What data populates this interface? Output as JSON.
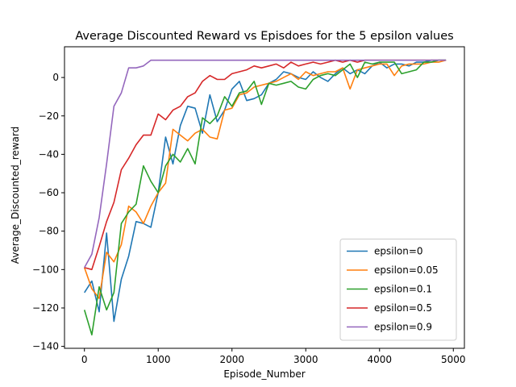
{
  "chart_data": {
    "type": "line",
    "title": "Average Discounted Reward vs Episdoes for the 5 epsilon values",
    "xlabel": "Episode_Number",
    "ylabel": "Average_Discounted_reward",
    "xlim": [
      -270,
      5150
    ],
    "ylim": [
      -141,
      16
    ],
    "xticks": [
      0,
      1000,
      2000,
      3000,
      4000,
      5000
    ],
    "yticks": [
      -140,
      -120,
      -100,
      -80,
      -60,
      -40,
      -20,
      0
    ],
    "legend_position": "lower right",
    "grid": false,
    "x": [
      0,
      100,
      200,
      300,
      400,
      500,
      600,
      700,
      800,
      900,
      1000,
      1100,
      1200,
      1300,
      1400,
      1500,
      1600,
      1700,
      1800,
      1900,
      2000,
      2100,
      2200,
      2300,
      2400,
      2500,
      2600,
      2700,
      2800,
      2900,
      3000,
      3100,
      3200,
      3300,
      3400,
      3500,
      3600,
      3700,
      3800,
      3900,
      4000,
      4100,
      4200,
      4300,
      4400,
      4500,
      4600,
      4700,
      4800,
      4900
    ],
    "series": [
      {
        "name": "epsilon=0",
        "color": "#1f77b4",
        "values": [
          -112,
          -106,
          -122,
          -81,
          -127,
          -105,
          -93,
          -75,
          -76,
          -78,
          -60,
          -31,
          -45,
          -25,
          -15,
          -16,
          -29,
          -9,
          -23,
          -17,
          -6,
          -2,
          -12,
          -11,
          -9,
          -3,
          -1,
          3,
          2,
          0,
          -1,
          3,
          0,
          -2,
          2,
          5,
          2,
          4,
          2,
          6,
          8,
          5,
          7,
          7,
          6,
          8,
          8,
          9,
          9,
          9
        ]
      },
      {
        "name": "epsilon=0.05",
        "color": "#ff7f0e",
        "values": [
          -99,
          -110,
          -115,
          -91,
          -96,
          -87,
          -67,
          -70,
          -76,
          -67,
          -60,
          -55,
          -27,
          -30,
          -33,
          -29,
          -27,
          -31,
          -32,
          -17,
          -16,
          -9,
          -8,
          -5,
          -4,
          -3,
          -2,
          0,
          2,
          -1,
          3,
          1,
          2,
          3,
          3,
          5,
          -6,
          4,
          5,
          6,
          7,
          7,
          1,
          6,
          7,
          7,
          7,
          8,
          8,
          9
        ]
      },
      {
        "name": "epsilon=0.1",
        "color": "#2ca02c",
        "values": [
          -121,
          -134,
          -109,
          -121,
          -112,
          -76,
          -70,
          -66,
          -46,
          -54,
          -60,
          -46,
          -40,
          -44,
          -37,
          -45,
          -21,
          -24,
          -20,
          -10,
          -15,
          -8,
          -7,
          -2,
          -14,
          -3,
          -4,
          -3,
          -2,
          -5,
          -6,
          -1,
          1,
          2,
          1,
          4,
          7,
          0,
          8,
          7,
          8,
          8,
          8,
          2,
          3,
          4,
          8,
          8,
          9,
          9
        ]
      },
      {
        "name": "epsilon=0.5",
        "color": "#d62728",
        "values": [
          -99,
          -100,
          -88,
          -75,
          -65,
          -48,
          -42,
          -35,
          -30,
          -30,
          -19,
          -22,
          -17,
          -15,
          -10,
          -8,
          -2,
          1,
          -1,
          -1,
          2,
          3,
          4,
          6,
          5,
          6,
          7,
          5,
          8,
          6,
          7,
          8,
          7,
          8,
          9,
          8,
          9,
          8,
          9,
          9,
          9,
          9,
          9,
          9,
          9,
          9,
          9,
          9,
          9,
          9
        ]
      },
      {
        "name": "epsilon=0.9",
        "color": "#9467bd",
        "values": [
          -99,
          -92,
          -73,
          -45,
          -15,
          -8,
          5,
          5,
          6,
          9,
          9,
          9,
          9,
          9,
          9,
          9,
          9,
          9,
          9,
          9,
          9,
          9,
          9,
          9,
          9,
          9,
          9,
          9,
          9,
          9,
          9,
          9,
          9,
          9,
          9,
          9,
          9,
          9,
          9,
          9,
          9,
          9,
          9,
          9,
          9,
          9,
          9,
          9,
          9,
          9
        ]
      }
    ]
  }
}
